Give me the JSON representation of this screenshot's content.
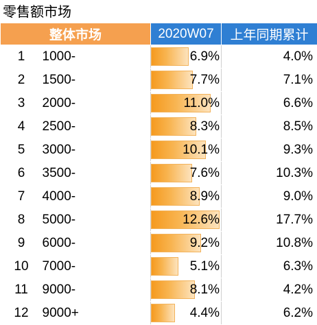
{
  "title": "零售额市场",
  "header": {
    "market": "整体市场",
    "week": "2020W07",
    "ytd": "上年同期累计"
  },
  "bar_max_fraction_of": 12.6,
  "rows": [
    {
      "rank": "1",
      "segment": "1000-",
      "week": "6.9%",
      "week_value": 6.9,
      "ytd": "4.0%"
    },
    {
      "rank": "2",
      "segment": "1500-",
      "week": "7.7%",
      "week_value": 7.7,
      "ytd": "7.1%"
    },
    {
      "rank": "3",
      "segment": "2000-",
      "week": "11.0%",
      "week_value": 11.0,
      "ytd": "6.6%"
    },
    {
      "rank": "4",
      "segment": "2500-",
      "week": "8.3%",
      "week_value": 8.3,
      "ytd": "8.5%"
    },
    {
      "rank": "5",
      "segment": "3000-",
      "week": "10.1%",
      "week_value": 10.1,
      "ytd": "9.3%"
    },
    {
      "rank": "6",
      "segment": "3500-",
      "week": "7.6%",
      "week_value": 7.6,
      "ytd": "10.3%"
    },
    {
      "rank": "7",
      "segment": "4000-",
      "week": "8.9%",
      "week_value": 8.9,
      "ytd": "9.0%"
    },
    {
      "rank": "8",
      "segment": "5000-",
      "week": "12.6%",
      "week_value": 12.6,
      "ytd": "17.7%"
    },
    {
      "rank": "9",
      "segment": "6000-",
      "week": "9.2%",
      "week_value": 9.2,
      "ytd": "10.8%"
    },
    {
      "rank": "10",
      "segment": "7000-",
      "week": "5.1%",
      "week_value": 5.1,
      "ytd": "6.3%"
    },
    {
      "rank": "11",
      "segment": "9000-",
      "week": "8.1%",
      "week_value": 8.1,
      "ytd": "4.2%"
    },
    {
      "rank": "12",
      "segment": "9000+",
      "week": "4.4%",
      "week_value": 4.4,
      "ytd": "6.2%"
    }
  ],
  "colors": {
    "header_market_bg": "#f5a04f",
    "header_week_bg": "#2f7fd3",
    "bar_fill": "#f59a1f"
  }
}
